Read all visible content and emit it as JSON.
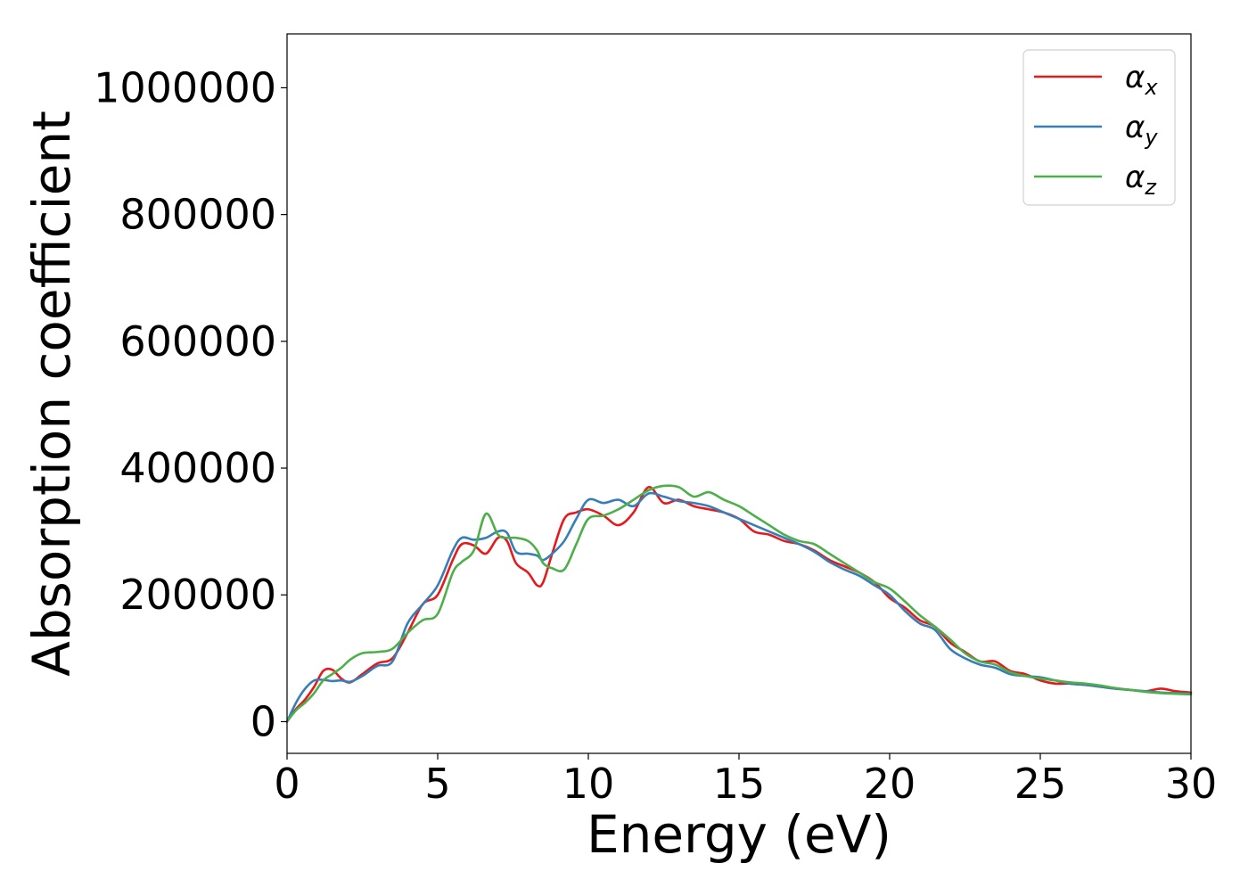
{
  "chart_data": {
    "type": "line",
    "title": "",
    "xlabel": "Energy (eV)",
    "ylabel": "Absorption coefficient",
    "xlim": [
      0,
      30
    ],
    "ylim": [
      -50000,
      1085000
    ],
    "xticks": [
      0,
      5,
      10,
      15,
      20,
      25,
      30
    ],
    "yticks": [
      0,
      200000,
      400000,
      600000,
      800000,
      1000000
    ],
    "grid": false,
    "legend_position": "top-right",
    "series": [
      {
        "name": "α_x",
        "label_main": "α",
        "label_sub": "x",
        "color": "#e41a1c",
        "x": [
          0,
          0.3,
          0.6,
          0.9,
          1.2,
          1.5,
          1.8,
          2.1,
          2.5,
          3.0,
          3.5,
          4.0,
          4.5,
          5.0,
          5.5,
          5.8,
          6.2,
          6.6,
          7.0,
          7.3,
          7.6,
          8.0,
          8.3,
          8.5,
          8.8,
          9.2,
          9.6,
          10.0,
          10.5,
          11.0,
          11.5,
          12.0,
          12.5,
          13.0,
          13.5,
          14.0,
          14.5,
          15.0,
          15.5,
          16.0,
          16.5,
          17.0,
          17.5,
          18.0,
          18.5,
          19.0,
          19.5,
          20.0,
          20.5,
          21.0,
          21.5,
          22.0,
          22.5,
          23.0,
          23.5,
          24.0,
          24.5,
          25.0,
          25.5,
          26.0,
          26.5,
          27.0,
          27.5,
          28.0,
          28.5,
          29.0,
          29.5,
          30.0
        ],
        "values": [
          0,
          20000,
          35000,
          55000,
          80000,
          82000,
          68000,
          62000,
          75000,
          92000,
          100000,
          140000,
          185000,
          200000,
          255000,
          280000,
          278000,
          265000,
          290000,
          285000,
          250000,
          235000,
          215000,
          220000,
          265000,
          320000,
          330000,
          335000,
          325000,
          310000,
          330000,
          370000,
          345000,
          350000,
          340000,
          335000,
          330000,
          320000,
          300000,
          295000,
          285000,
          280000,
          270000,
          255000,
          245000,
          235000,
          220000,
          195000,
          180000,
          160000,
          150000,
          125000,
          110000,
          95000,
          95000,
          80000,
          75000,
          65000,
          60000,
          60000,
          58000,
          55000,
          52000,
          50000,
          48000,
          52000,
          48000,
          46000
        ]
      },
      {
        "name": "α_y",
        "label_main": "α",
        "label_sub": "y",
        "color": "#377eb8",
        "x": [
          0,
          0.3,
          0.6,
          0.9,
          1.2,
          1.5,
          1.8,
          2.1,
          2.5,
          3.0,
          3.5,
          4.0,
          4.5,
          5.0,
          5.5,
          5.8,
          6.2,
          6.6,
          7.0,
          7.3,
          7.6,
          8.0,
          8.3,
          8.5,
          8.8,
          9.2,
          9.6,
          10.0,
          10.5,
          11.0,
          11.5,
          12.0,
          12.5,
          13.0,
          13.5,
          14.0,
          14.5,
          15.0,
          15.5,
          16.0,
          16.5,
          17.0,
          17.5,
          18.0,
          18.5,
          19.0,
          19.5,
          20.0,
          20.5,
          21.0,
          21.5,
          22.0,
          22.5,
          23.0,
          23.5,
          24.0,
          24.5,
          25.0,
          25.5,
          26.0,
          26.5,
          27.0,
          27.5,
          28.0,
          28.5,
          29.0,
          29.5,
          30.0
        ],
        "values": [
          0,
          30000,
          52000,
          65000,
          66000,
          64000,
          65000,
          63000,
          72000,
          88000,
          95000,
          155000,
          185000,
          215000,
          270000,
          290000,
          287000,
          290000,
          300000,
          298000,
          268000,
          265000,
          262000,
          255000,
          265000,
          285000,
          320000,
          350000,
          345000,
          350000,
          340000,
          360000,
          355000,
          348000,
          345000,
          340000,
          330000,
          320000,
          310000,
          300000,
          290000,
          280000,
          268000,
          252000,
          240000,
          230000,
          215000,
          200000,
          175000,
          155000,
          145000,
          115000,
          100000,
          90000,
          85000,
          75000,
          72000,
          70000,
          65000,
          60000,
          58000,
          55000,
          52000,
          50000,
          48000,
          46000,
          45000,
          44000
        ]
      },
      {
        "name": "α_z",
        "label_main": "α",
        "label_sub": "z",
        "color": "#4daf4a",
        "x": [
          0,
          0.3,
          0.6,
          0.9,
          1.2,
          1.5,
          1.8,
          2.1,
          2.5,
          3.0,
          3.5,
          4.0,
          4.5,
          5.0,
          5.5,
          5.8,
          6.2,
          6.6,
          7.0,
          7.3,
          7.6,
          8.0,
          8.3,
          8.5,
          8.8,
          9.2,
          9.6,
          10.0,
          10.5,
          11.0,
          11.5,
          12.0,
          12.5,
          13.0,
          13.5,
          14.0,
          14.5,
          15.0,
          15.5,
          16.0,
          16.5,
          17.0,
          17.5,
          18.0,
          18.5,
          19.0,
          19.5,
          20.0,
          20.5,
          21.0,
          21.5,
          22.0,
          22.5,
          23.0,
          23.5,
          24.0,
          24.5,
          25.0,
          25.5,
          26.0,
          26.5,
          27.0,
          27.5,
          28.0,
          28.5,
          29.0,
          29.5,
          30.0
        ],
        "values": [
          0,
          18000,
          30000,
          45000,
          65000,
          75000,
          85000,
          98000,
          108000,
          110000,
          115000,
          140000,
          160000,
          170000,
          235000,
          252000,
          270000,
          328000,
          295000,
          290000,
          290000,
          285000,
          270000,
          250000,
          242000,
          240000,
          280000,
          320000,
          325000,
          335000,
          350000,
          365000,
          372000,
          370000,
          355000,
          362000,
          350000,
          340000,
          325000,
          310000,
          295000,
          285000,
          280000,
          265000,
          250000,
          235000,
          220000,
          210000,
          190000,
          168000,
          150000,
          130000,
          108000,
          95000,
          90000,
          78000,
          72000,
          68000,
          65000,
          62000,
          60000,
          57000,
          53000,
          50000,
          47000,
          45000,
          44000,
          43000
        ]
      }
    ]
  }
}
